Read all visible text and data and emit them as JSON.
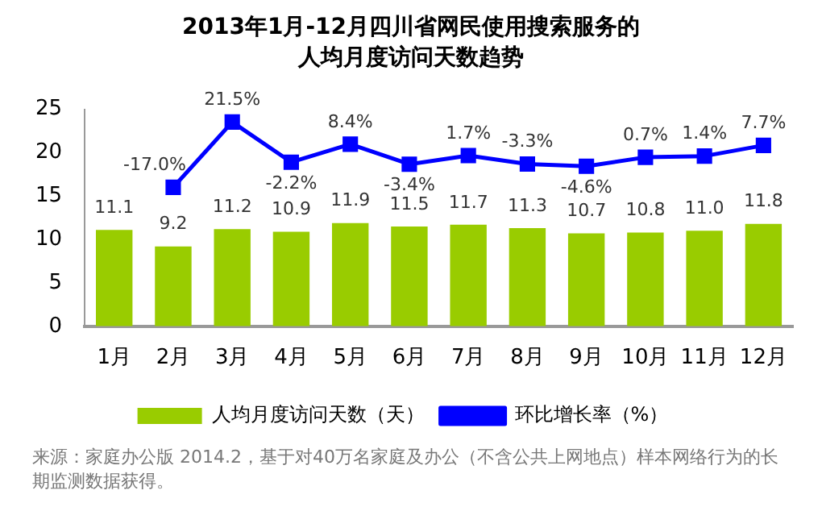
{
  "chart_data": {
    "type": "bar",
    "title": "2013年1月-12月四川省网民使用搜索服务的人均月度访问天数趋势",
    "categories": [
      "1月",
      "2月",
      "3月",
      "4月",
      "5月",
      "6月",
      "7月",
      "8月",
      "9月",
      "10月",
      "11月",
      "12月"
    ],
    "series": [
      {
        "name": "人均月度访问天数（天）",
        "color": "#99cc00",
        "values": [
          11.1,
          9.2,
          11.2,
          10.9,
          11.9,
          11.5,
          11.7,
          11.3,
          10.7,
          10.8,
          11.0,
          11.8
        ],
        "value_labels": [
          "11.1",
          "9.2",
          "11.2",
          "10.9",
          "11.9",
          "11.5",
          "11.7",
          "11.3",
          "10.7",
          "10.8",
          "11.0",
          "11.8"
        ]
      },
      {
        "name": "环比增长率（%）",
        "type": "line",
        "axis": "y2",
        "color": "#0000ff",
        "values": [
          null,
          -17.0,
          21.5,
          -2.2,
          8.4,
          -3.4,
          1.7,
          -3.3,
          -4.6,
          0.7,
          1.4,
          7.7
        ],
        "value_labels": [
          null,
          "-17.0%",
          "21.5%",
          "-2.2%",
          "8.4%",
          "-3.4%",
          "1.7%",
          "-3.3%",
          "-4.6%",
          "0.7%",
          "1.4%",
          "7.7%"
        ]
      }
    ],
    "ylim": [
      0,
      25
    ],
    "yticks": [
      0,
      5,
      10,
      15,
      20,
      25
    ],
    "y2lim": [
      -99,
      29
    ],
    "grid": false,
    "legend": "bottom",
    "marker": "square",
    "line_style": "solid",
    "annotations": [
      "来源：家庭办公版 2014.2，基于对40万名家庭及办公（不含公共上网地点）样本网络行为的长期监测数据获得。"
    ]
  }
}
